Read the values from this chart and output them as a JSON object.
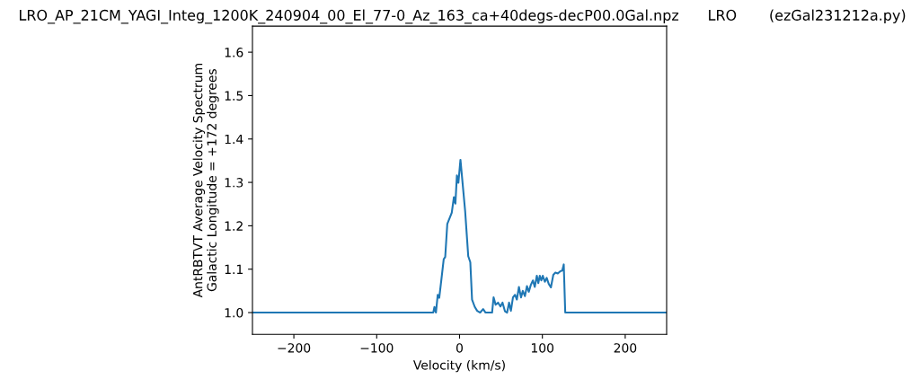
{
  "chart_data": {
    "type": "line",
    "title": "LRO_AP_21CM_YAGI_Integ_1200K_240904_00_El_77-0_Az_163_ca+40degs-decP00.0Gal.npz",
    "annotations": [
      "LRO",
      "(ezGal231212a.py)"
    ],
    "xlabel": "Velocity (km/s)",
    "ylabel": "AntRBTVT Average Velocity Spectrum\nGalactic Longitude = +172 degrees",
    "xlim": [
      -250,
      250
    ],
    "ylim": [
      0.95,
      1.66
    ],
    "xticks": [
      {
        "value": -200,
        "label": "−200"
      },
      {
        "value": -100,
        "label": "−100"
      },
      0,
      100,
      200
    ],
    "yticks": [
      {
        "value": 1.0,
        "label": "1.0"
      },
      1.1,
      1.2,
      1.3,
      1.4,
      1.5,
      1.6
    ],
    "grid": false,
    "legend": false,
    "series": [
      {
        "color": "#1f77b4",
        "x": [
          -250,
          -31.7,
          -30.3,
          -28.5,
          -26.3,
          -24.5,
          -22,
          -19.1,
          -17.3,
          -14.8,
          -9.4,
          -6.8,
          -5.0,
          -3.2,
          -1.4,
          1.1,
          6.8,
          10.5,
          13.0,
          15.1,
          18.4,
          21.3,
          24.9,
          28.5,
          31.4,
          39.3,
          41.1,
          43.6,
          46.5,
          49.4,
          51.9,
          54.8,
          57.4,
          59.8,
          62.0,
          64.5,
          67.0,
          69.2,
          71.7,
          74.2,
          76.4,
          78.9,
          81.4,
          83.6,
          86.1,
          88.6,
          90.8,
          93.3,
          95.1,
          96.9,
          98.7,
          100.5,
          103.0,
          105.2,
          107.7,
          110.3,
          113.2,
          115.7,
          118.6,
          121.4,
          124.0,
          125.8,
          127.6,
          250
        ],
        "values": [
          1.0,
          1.0,
          1.013,
          1.0,
          1.041,
          1.034,
          1.075,
          1.123,
          1.128,
          1.204,
          1.23,
          1.266,
          1.251,
          1.316,
          1.299,
          1.352,
          1.233,
          1.13,
          1.116,
          1.03,
          1.013,
          1.004,
          1.0,
          1.008,
          1.0,
          1.0,
          1.035,
          1.018,
          1.023,
          1.014,
          1.023,
          1.003,
          1.0,
          1.023,
          1.004,
          1.035,
          1.041,
          1.03,
          1.059,
          1.035,
          1.05,
          1.038,
          1.061,
          1.048,
          1.064,
          1.074,
          1.059,
          1.085,
          1.068,
          1.085,
          1.074,
          1.085,
          1.071,
          1.08,
          1.066,
          1.058,
          1.087,
          1.092,
          1.09,
          1.095,
          1.097,
          1.111,
          1.0,
          1.0
        ]
      }
    ]
  }
}
